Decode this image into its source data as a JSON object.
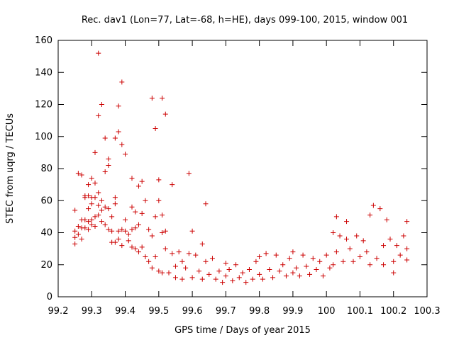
{
  "chart_data": {
    "type": "scatter",
    "title": "Rec. dav1 (Lon=77, Lat=-68, h=HE), days 099-100, 2015, window 001",
    "xlabel": "GPS time / Days of year 2015",
    "ylabel": "STEC from uqrg / TECUs",
    "xlim": [
      99.2,
      100.3
    ],
    "ylim": [
      0,
      160
    ],
    "xticks": [
      "99.2",
      "99.3",
      "99.4",
      "99.5",
      "99.6",
      "99.7",
      "99.8",
      "99.9",
      "100",
      "100.1",
      "100.2",
      "100.3"
    ],
    "yticks": [
      "0",
      "20",
      "40",
      "60",
      "80",
      "100",
      "120",
      "140",
      "160"
    ],
    "marker": "plus",
    "color": "#cc0000",
    "grid": false,
    "legend": "none",
    "points": [
      [
        99.25,
        54
      ],
      [
        99.25,
        41
      ],
      [
        99.25,
        37
      ],
      [
        99.25,
        33
      ],
      [
        99.26,
        77
      ],
      [
        99.26,
        44
      ],
      [
        99.26,
        39
      ],
      [
        99.27,
        76
      ],
      [
        99.27,
        48
      ],
      [
        99.27,
        43
      ],
      [
        99.27,
        36
      ],
      [
        99.28,
        63
      ],
      [
        99.28,
        62
      ],
      [
        99.28,
        48
      ],
      [
        99.28,
        43
      ],
      [
        99.29,
        70
      ],
      [
        99.29,
        63
      ],
      [
        99.29,
        55
      ],
      [
        99.29,
        47
      ],
      [
        99.29,
        42
      ],
      [
        99.3,
        74
      ],
      [
        99.3,
        62
      ],
      [
        99.3,
        58
      ],
      [
        99.3,
        48
      ],
      [
        99.3,
        45
      ],
      [
        99.31,
        90
      ],
      [
        99.31,
        71
      ],
      [
        99.31,
        62
      ],
      [
        99.31,
        50
      ],
      [
        99.31,
        44
      ],
      [
        99.32,
        152
      ],
      [
        99.32,
        113
      ],
      [
        99.32,
        65
      ],
      [
        99.32,
        57
      ],
      [
        99.32,
        51
      ],
      [
        99.33,
        120
      ],
      [
        99.33,
        60
      ],
      [
        99.33,
        54
      ],
      [
        99.33,
        47
      ],
      [
        99.34,
        99
      ],
      [
        99.34,
        78
      ],
      [
        99.34,
        56
      ],
      [
        99.34,
        45
      ],
      [
        99.35,
        86
      ],
      [
        99.35,
        82
      ],
      [
        99.35,
        55
      ],
      [
        99.35,
        42
      ],
      [
        99.36,
        50
      ],
      [
        99.36,
        41
      ],
      [
        99.36,
        34
      ],
      [
        99.37,
        99
      ],
      [
        99.37,
        62
      ],
      [
        99.37,
        58
      ],
      [
        99.37,
        34
      ],
      [
        99.38,
        103
      ],
      [
        99.38,
        119
      ],
      [
        99.38,
        41
      ],
      [
        99.38,
        36
      ],
      [
        99.39,
        134
      ],
      [
        99.39,
        95
      ],
      [
        99.39,
        42
      ],
      [
        99.39,
        32
      ],
      [
        99.4,
        89
      ],
      [
        99.4,
        48
      ],
      [
        99.4,
        41
      ],
      [
        99.41,
        39
      ],
      [
        99.41,
        35
      ],
      [
        99.42,
        74
      ],
      [
        99.42,
        56
      ],
      [
        99.42,
        42
      ],
      [
        99.42,
        31
      ],
      [
        99.43,
        53
      ],
      [
        99.43,
        43
      ],
      [
        99.43,
        30
      ],
      [
        99.44,
        69
      ],
      [
        99.44,
        45
      ],
      [
        99.44,
        28
      ],
      [
        99.45,
        72
      ],
      [
        99.45,
        52
      ],
      [
        99.45,
        31
      ],
      [
        99.46,
        60
      ],
      [
        99.46,
        25
      ],
      [
        99.47,
        42
      ],
      [
        99.47,
        22
      ],
      [
        99.48,
        124
      ],
      [
        99.48,
        38
      ],
      [
        99.48,
        18
      ],
      [
        99.49,
        105
      ],
      [
        99.49,
        50
      ],
      [
        99.49,
        25
      ],
      [
        99.5,
        73
      ],
      [
        99.5,
        60
      ],
      [
        99.5,
        16
      ],
      [
        99.51,
        124
      ],
      [
        99.51,
        51
      ],
      [
        99.51,
        40
      ],
      [
        99.51,
        15
      ],
      [
        99.52,
        114
      ],
      [
        99.52,
        41
      ],
      [
        99.52,
        30
      ],
      [
        99.53,
        15
      ],
      [
        99.54,
        70
      ],
      [
        99.54,
        27
      ],
      [
        99.55,
        19
      ],
      [
        99.55,
        12
      ],
      [
        99.56,
        28
      ],
      [
        99.57,
        22
      ],
      [
        99.57,
        11
      ],
      [
        99.58,
        18
      ],
      [
        99.59,
        77
      ],
      [
        99.59,
        27
      ],
      [
        99.6,
        41
      ],
      [
        99.6,
        12
      ],
      [
        99.61,
        26
      ],
      [
        99.62,
        16
      ],
      [
        99.63,
        33
      ],
      [
        99.63,
        11
      ],
      [
        99.64,
        58
      ],
      [
        99.64,
        22
      ],
      [
        99.65,
        14
      ],
      [
        99.66,
        24
      ],
      [
        99.67,
        11
      ],
      [
        99.68,
        16
      ],
      [
        99.69,
        9
      ],
      [
        99.7,
        21
      ],
      [
        99.7,
        13
      ],
      [
        99.71,
        17
      ],
      [
        99.72,
        10
      ],
      [
        99.73,
        20
      ],
      [
        99.74,
        12
      ],
      [
        99.75,
        15
      ],
      [
        99.76,
        9
      ],
      [
        99.77,
        17
      ],
      [
        99.78,
        11
      ],
      [
        99.79,
        22
      ],
      [
        99.8,
        25
      ],
      [
        99.8,
        14
      ],
      [
        99.81,
        11
      ],
      [
        99.82,
        27
      ],
      [
        99.83,
        17
      ],
      [
        99.84,
        12
      ],
      [
        99.85,
        26
      ],
      [
        99.86,
        16
      ],
      [
        99.87,
        20
      ],
      [
        99.88,
        13
      ],
      [
        99.89,
        24
      ],
      [
        99.9,
        28
      ],
      [
        99.9,
        15
      ],
      [
        99.91,
        18
      ],
      [
        99.92,
        13
      ],
      [
        99.93,
        26
      ],
      [
        99.94,
        19
      ],
      [
        99.95,
        14
      ],
      [
        99.96,
        24
      ],
      [
        99.97,
        17
      ],
      [
        99.98,
        22
      ],
      [
        99.99,
        13
      ],
      [
        100.0,
        26
      ],
      [
        100.01,
        18
      ],
      [
        100.02,
        40
      ],
      [
        100.02,
        20
      ],
      [
        100.03,
        50
      ],
      [
        100.03,
        28
      ],
      [
        100.04,
        38
      ],
      [
        100.05,
        22
      ],
      [
        100.06,
        36
      ],
      [
        100.06,
        47
      ],
      [
        100.07,
        30
      ],
      [
        100.08,
        22
      ],
      [
        100.09,
        38
      ],
      [
        100.1,
        25
      ],
      [
        100.11,
        35
      ],
      [
        100.12,
        28
      ],
      [
        100.13,
        51
      ],
      [
        100.13,
        20
      ],
      [
        100.14,
        57
      ],
      [
        100.15,
        24
      ],
      [
        100.16,
        55
      ],
      [
        100.17,
        32
      ],
      [
        100.17,
        20
      ],
      [
        100.18,
        48
      ],
      [
        100.19,
        36
      ],
      [
        100.2,
        22
      ],
      [
        100.2,
        15
      ],
      [
        100.21,
        32
      ],
      [
        100.22,
        26
      ],
      [
        100.23,
        38
      ],
      [
        100.24,
        47
      ],
      [
        100.24,
        30
      ],
      [
        100.24,
        23
      ]
    ]
  }
}
